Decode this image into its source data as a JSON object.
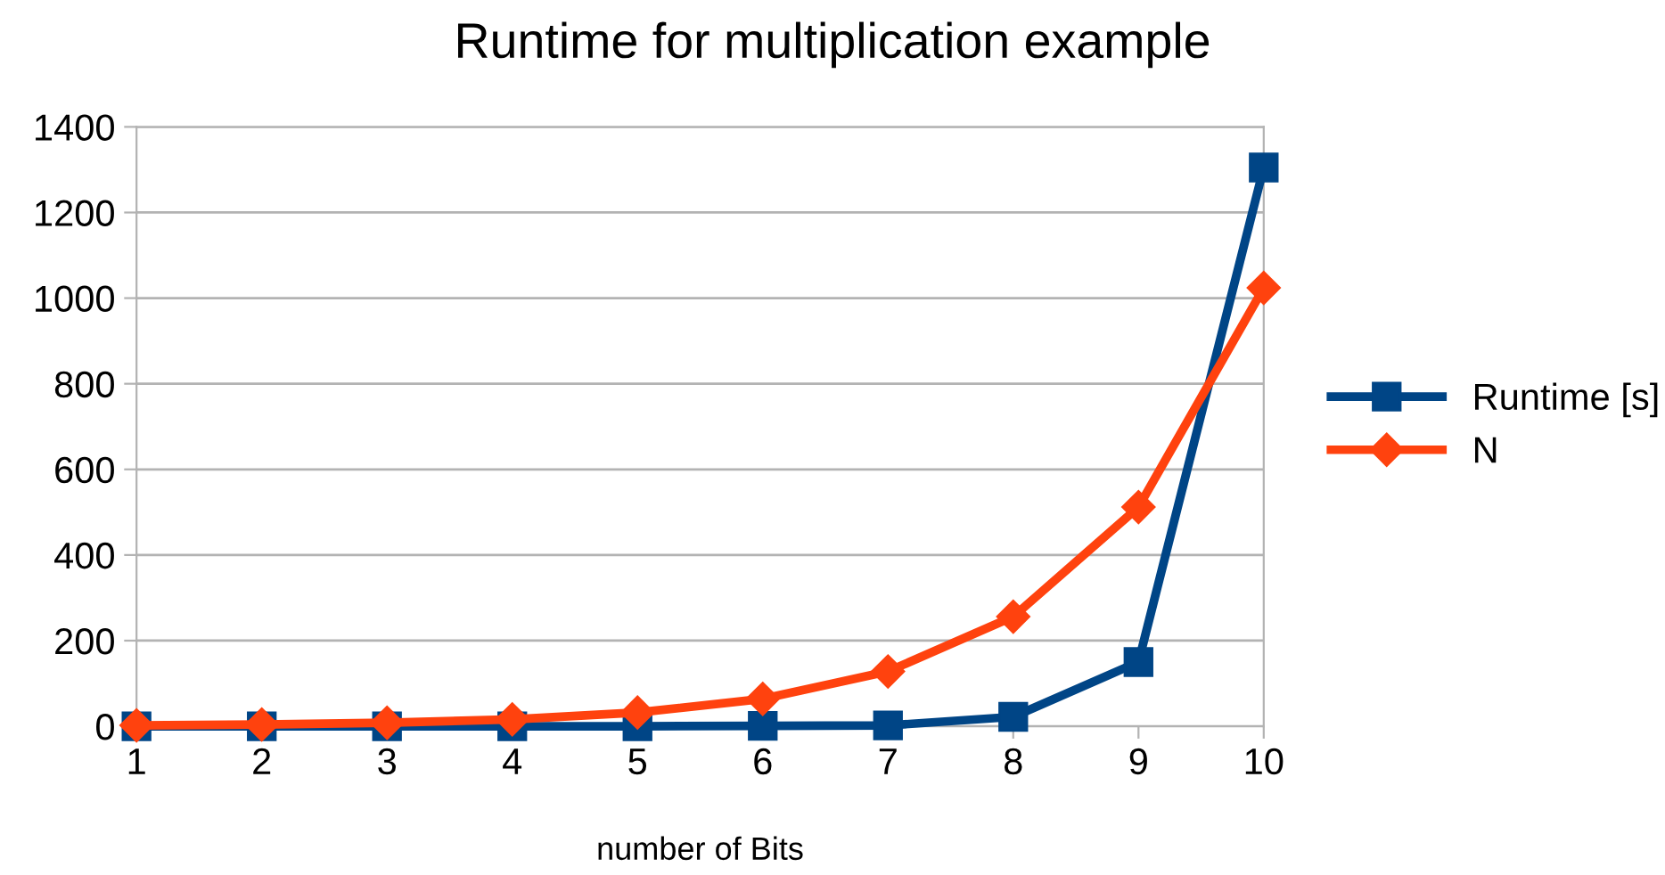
{
  "chart_data": {
    "type": "line",
    "title": "Runtime for multiplication example",
    "xlabel": "number of Bits",
    "x": [
      1,
      2,
      3,
      4,
      5,
      6,
      7,
      8,
      9,
      10
    ],
    "series": [
      {
        "name": "Runtime [s]",
        "color": "#004586",
        "marker": "square",
        "values": [
          0,
          0,
          0,
          0,
          0,
          1,
          2,
          22,
          150,
          1305
        ]
      },
      {
        "name": "N",
        "color": "#ff420e",
        "marker": "diamond",
        "values": [
          2,
          4,
          8,
          16,
          32,
          64,
          128,
          256,
          512,
          1024
        ]
      }
    ],
    "xlim": [
      1,
      10
    ],
    "xticks": [
      1,
      2,
      3,
      4,
      5,
      6,
      7,
      8,
      9,
      10
    ],
    "ylim": [
      0,
      1400
    ],
    "yticks": [
      0,
      200,
      400,
      600,
      800,
      1000,
      1200,
      1400
    ],
    "grid": "y",
    "legend": "right",
    "line_style": "solid"
  }
}
